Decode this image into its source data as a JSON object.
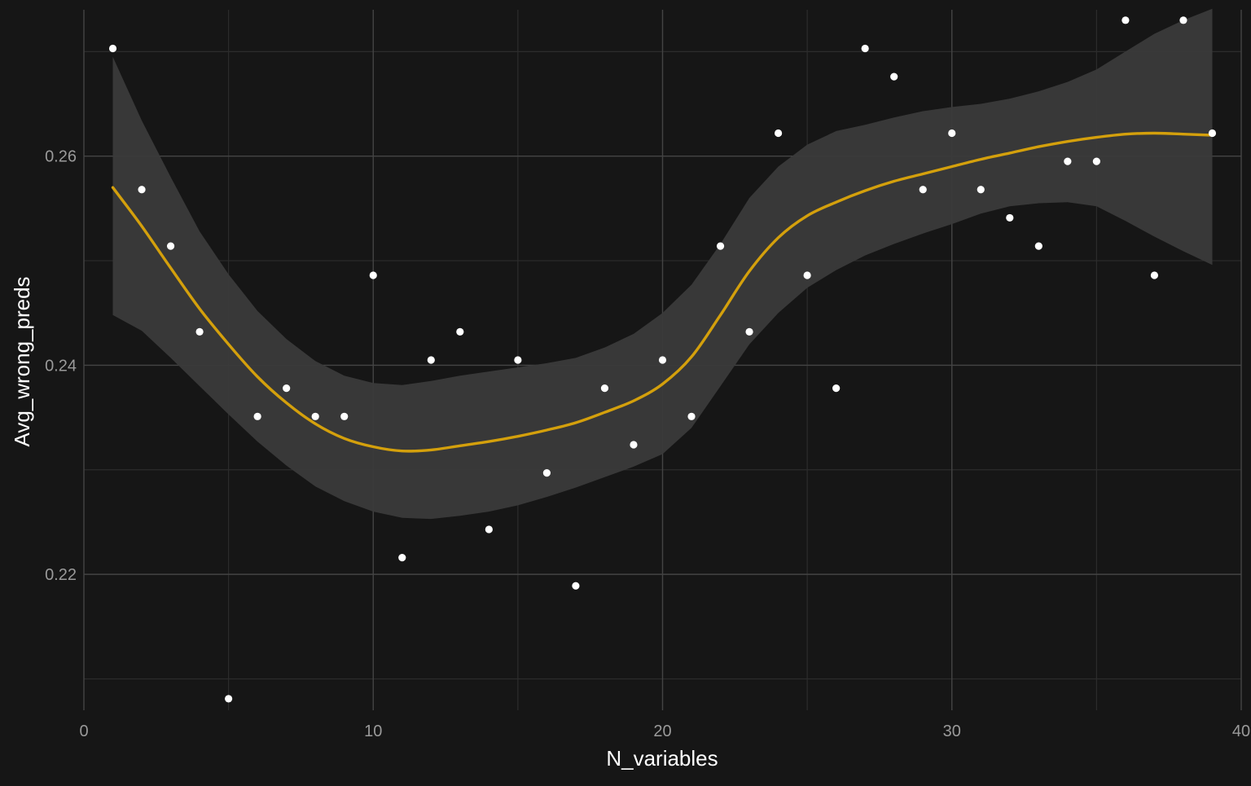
{
  "colors": {
    "background": "#161616",
    "grid_major": "#444444",
    "grid_minor": "#2c2c2c",
    "points": "#ffffff",
    "smooth_line": "#d4a00c",
    "ribbon": "#3a3a3a",
    "tick_text": "#9a9a9a",
    "axis_title": "#ffffff"
  },
  "chart_data": {
    "type": "scatter",
    "title": "",
    "xlabel": "N_variables",
    "ylabel": "Avg_wrong_preds",
    "xlim": [
      0,
      40
    ],
    "ylim": [
      0.207,
      0.274
    ],
    "x_ticks": [
      0,
      10,
      20,
      30,
      40
    ],
    "x_tick_labels": [
      "0",
      "10",
      "20",
      "30",
      "40"
    ],
    "y_ticks": [
      0.22,
      0.24,
      0.26
    ],
    "y_tick_labels": [
      "0.22",
      "0.24",
      "0.26"
    ],
    "grid": true,
    "legend": "none",
    "points": {
      "x": [
        1,
        2,
        3,
        4,
        5,
        6,
        7,
        8,
        9,
        10,
        11,
        12,
        13,
        14,
        15,
        16,
        17,
        18,
        19,
        20,
        21,
        22,
        23,
        24,
        25,
        26,
        27,
        28,
        29,
        30,
        31,
        32,
        33,
        34,
        35,
        36,
        37,
        38,
        39
      ],
      "y": [
        0.2703,
        0.2568,
        0.2514,
        0.2432,
        0.2081,
        0.2351,
        0.2378,
        0.2351,
        0.2351,
        0.2486,
        0.2216,
        0.2405,
        0.2432,
        0.2243,
        0.2405,
        0.2297,
        0.2189,
        0.2378,
        0.2324,
        0.2405,
        0.2351,
        0.2514,
        0.2432,
        0.2622,
        0.2486,
        0.2378,
        0.2703,
        0.2676,
        0.2568,
        0.2622,
        0.2568,
        0.2541,
        0.2514,
        0.2595,
        0.2595,
        0.273,
        0.2486,
        0.273,
        0.2622
      ]
    },
    "smooth": {
      "method": "loess",
      "x": [
        1,
        2,
        3,
        4,
        5,
        6,
        7,
        8,
        9,
        10,
        11,
        12,
        13,
        14,
        15,
        16,
        17,
        18,
        19,
        20,
        21,
        22,
        23,
        24,
        25,
        26,
        27,
        28,
        29,
        30,
        31,
        32,
        33,
        34,
        35,
        36,
        37,
        38,
        39
      ],
      "y": [
        0.257,
        0.2533,
        0.2493,
        0.2454,
        0.242,
        0.2389,
        0.2364,
        0.2344,
        0.233,
        0.2322,
        0.2318,
        0.2319,
        0.2323,
        0.2327,
        0.2332,
        0.2338,
        0.2345,
        0.2355,
        0.2366,
        0.2382,
        0.2408,
        0.2448,
        0.249,
        0.2522,
        0.2543,
        0.2556,
        0.2567,
        0.2576,
        0.2583,
        0.259,
        0.2597,
        0.2603,
        0.2609,
        0.2614,
        0.2618,
        0.2621,
        0.2622,
        0.2621,
        0.262
      ],
      "ci_lower": [
        0.2448,
        0.2433,
        0.2407,
        0.238,
        0.2353,
        0.2327,
        0.2304,
        0.2284,
        0.227,
        0.226,
        0.2254,
        0.2253,
        0.2256,
        0.226,
        0.2266,
        0.2274,
        0.2283,
        0.2293,
        0.2303,
        0.2315,
        0.234,
        0.238,
        0.242,
        0.245,
        0.2474,
        0.2491,
        0.2505,
        0.2516,
        0.2526,
        0.2535,
        0.2545,
        0.2552,
        0.2555,
        0.2556,
        0.2552,
        0.2538,
        0.2523,
        0.2509,
        0.2496
      ],
      "ci_upper": [
        0.2695,
        0.2634,
        0.258,
        0.2528,
        0.2487,
        0.2452,
        0.2425,
        0.2404,
        0.239,
        0.2383,
        0.2381,
        0.2385,
        0.239,
        0.2394,
        0.2398,
        0.2402,
        0.2407,
        0.2417,
        0.243,
        0.245,
        0.2477,
        0.2516,
        0.256,
        0.259,
        0.2611,
        0.2624,
        0.263,
        0.2637,
        0.2643,
        0.2647,
        0.265,
        0.2655,
        0.2662,
        0.2671,
        0.2683,
        0.27,
        0.2717,
        0.273,
        0.2741
      ]
    }
  }
}
